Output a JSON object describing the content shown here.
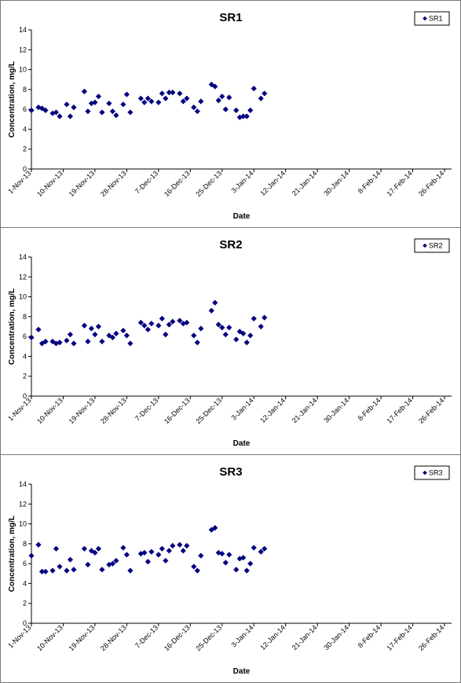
{
  "chart_data": [
    {
      "type": "scatter",
      "title": "SR1",
      "xlabel": "Date",
      "ylabel": "Concentration, mg/L",
      "ylim": [
        0,
        14
      ],
      "yticks": [
        0,
        2,
        4,
        6,
        8,
        10,
        12,
        14
      ],
      "xlim": [
        "2013-11-01",
        "2014-02-28"
      ],
      "xtick_labels": [
        "1-Nov-13",
        "10-Nov-13",
        "19-Nov-13",
        "28-Nov-13",
        "7-Dec-13",
        "16-Dec-13",
        "25-Dec-13",
        "3-Jan-14",
        "12-Jan-14",
        "21-Jan-14",
        "30-Jan-14",
        "8-Feb-14",
        "17-Feb-14",
        "26-Feb-14"
      ],
      "xtick_dates": [
        "2013-11-01",
        "2013-11-10",
        "2013-11-19",
        "2013-11-28",
        "2013-12-07",
        "2013-12-16",
        "2013-12-25",
        "2014-01-03",
        "2014-01-12",
        "2014-01-21",
        "2014-01-30",
        "2014-02-08",
        "2014-02-17",
        "2014-02-26"
      ],
      "grid": false,
      "legend_position": "top-right",
      "marker_color": "#000080",
      "series": [
        {
          "name": "SR1",
          "points": [
            {
              "x": "2013-11-01",
              "y": 5.9
            },
            {
              "x": "2013-11-03",
              "y": 6.2
            },
            {
              "x": "2013-11-04",
              "y": 6.1
            },
            {
              "x": "2013-11-05",
              "y": 5.9
            },
            {
              "x": "2013-11-07",
              "y": 5.6
            },
            {
              "x": "2013-11-08",
              "y": 5.7
            },
            {
              "x": "2013-11-09",
              "y": 5.3
            },
            {
              "x": "2013-11-11",
              "y": 6.5
            },
            {
              "x": "2013-11-12",
              "y": 5.3
            },
            {
              "x": "2013-11-13",
              "y": 6.2
            },
            {
              "x": "2013-11-16",
              "y": 7.8
            },
            {
              "x": "2013-11-17",
              "y": 5.8
            },
            {
              "x": "2013-11-18",
              "y": 6.6
            },
            {
              "x": "2013-11-19",
              "y": 6.7
            },
            {
              "x": "2013-11-20",
              "y": 7.3
            },
            {
              "x": "2013-11-21",
              "y": 5.7
            },
            {
              "x": "2013-11-23",
              "y": 6.6
            },
            {
              "x": "2013-11-24",
              "y": 5.8
            },
            {
              "x": "2013-11-25",
              "y": 5.4
            },
            {
              "x": "2013-11-27",
              "y": 6.5
            },
            {
              "x": "2013-11-28",
              "y": 7.5
            },
            {
              "x": "2013-11-29",
              "y": 5.7
            },
            {
              "x": "2013-12-02",
              "y": 7.1
            },
            {
              "x": "2013-12-03",
              "y": 6.7
            },
            {
              "x": "2013-12-04",
              "y": 7.1
            },
            {
              "x": "2013-12-05",
              "y": 6.8
            },
            {
              "x": "2013-12-07",
              "y": 6.7
            },
            {
              "x": "2013-12-08",
              "y": 7.6
            },
            {
              "x": "2013-12-09",
              "y": 7.1
            },
            {
              "x": "2013-12-10",
              "y": 7.7
            },
            {
              "x": "2013-12-11",
              "y": 7.7
            },
            {
              "x": "2013-12-13",
              "y": 7.6
            },
            {
              "x": "2013-12-14",
              "y": 6.8
            },
            {
              "x": "2013-12-15",
              "y": 7.1
            },
            {
              "x": "2013-12-17",
              "y": 6.2
            },
            {
              "x": "2013-12-18",
              "y": 5.8
            },
            {
              "x": "2013-12-19",
              "y": 6.8
            },
            {
              "x": "2013-12-22",
              "y": 8.5
            },
            {
              "x": "2013-12-23",
              "y": 8.3
            },
            {
              "x": "2013-12-24",
              "y": 6.9
            },
            {
              "x": "2013-12-25",
              "y": 7.3
            },
            {
              "x": "2013-12-26",
              "y": 6.0
            },
            {
              "x": "2013-12-27",
              "y": 7.2
            },
            {
              "x": "2013-12-29",
              "y": 5.9
            },
            {
              "x": "2013-12-30",
              "y": 5.2
            },
            {
              "x": "2013-12-31",
              "y": 5.3
            },
            {
              "x": "2014-01-01",
              "y": 5.3
            },
            {
              "x": "2014-01-02",
              "y": 5.9
            },
            {
              "x": "2014-01-03",
              "y": 8.1
            },
            {
              "x": "2014-01-05",
              "y": 7.1
            },
            {
              "x": "2014-01-06",
              "y": 7.6
            }
          ]
        }
      ]
    },
    {
      "type": "scatter",
      "title": "SR2",
      "xlabel": "Date",
      "ylabel": "Concentration, mg/L",
      "ylim": [
        0,
        14
      ],
      "yticks": [
        0,
        2,
        4,
        6,
        8,
        10,
        12,
        14
      ],
      "xlim": [
        "2013-11-01",
        "2014-02-28"
      ],
      "xtick_labels": [
        "1-Nov-13",
        "10-Nov-13",
        "19-Nov-13",
        "28-Nov-13",
        "7-Dec-13",
        "16-Dec-13",
        "25-Dec-13",
        "3-Jan-14",
        "12-Jan-14",
        "21-Jan-14",
        "30-Jan-14",
        "8-Feb-14",
        "17-Feb-14",
        "26-Feb-14"
      ],
      "xtick_dates": [
        "2013-11-01",
        "2013-11-10",
        "2013-11-19",
        "2013-11-28",
        "2013-12-07",
        "2013-12-16",
        "2013-12-25",
        "2014-01-03",
        "2014-01-12",
        "2014-01-21",
        "2014-01-30",
        "2014-02-08",
        "2014-02-17",
        "2014-02-26"
      ],
      "grid": false,
      "legend_position": "top-right",
      "marker_color": "#000080",
      "series": [
        {
          "name": "SR2",
          "points": [
            {
              "x": "2013-11-01",
              "y": 5.9
            },
            {
              "x": "2013-11-03",
              "y": 6.7
            },
            {
              "x": "2013-11-04",
              "y": 5.3
            },
            {
              "x": "2013-11-05",
              "y": 5.5
            },
            {
              "x": "2013-11-07",
              "y": 5.5
            },
            {
              "x": "2013-11-08",
              "y": 5.3
            },
            {
              "x": "2013-11-09",
              "y": 5.4
            },
            {
              "x": "2013-11-11",
              "y": 5.6
            },
            {
              "x": "2013-11-12",
              "y": 6.2
            },
            {
              "x": "2013-11-13",
              "y": 5.3
            },
            {
              "x": "2013-11-16",
              "y": 7.1
            },
            {
              "x": "2013-11-17",
              "y": 5.5
            },
            {
              "x": "2013-11-18",
              "y": 6.8
            },
            {
              "x": "2013-11-19",
              "y": 6.2
            },
            {
              "x": "2013-11-20",
              "y": 7.0
            },
            {
              "x": "2013-11-21",
              "y": 5.5
            },
            {
              "x": "2013-11-23",
              "y": 6.1
            },
            {
              "x": "2013-11-24",
              "y": 5.9
            },
            {
              "x": "2013-11-25",
              "y": 6.3
            },
            {
              "x": "2013-11-27",
              "y": 6.6
            },
            {
              "x": "2013-11-28",
              "y": 6.1
            },
            {
              "x": "2013-11-29",
              "y": 5.3
            },
            {
              "x": "2013-12-02",
              "y": 7.4
            },
            {
              "x": "2013-12-03",
              "y": 7.1
            },
            {
              "x": "2013-12-04",
              "y": 6.7
            },
            {
              "x": "2013-12-05",
              "y": 7.3
            },
            {
              "x": "2013-12-07",
              "y": 7.1
            },
            {
              "x": "2013-12-08",
              "y": 7.8
            },
            {
              "x": "2013-12-09",
              "y": 6.2
            },
            {
              "x": "2013-12-10",
              "y": 7.2
            },
            {
              "x": "2013-12-11",
              "y": 7.5
            },
            {
              "x": "2013-12-13",
              "y": 7.6
            },
            {
              "x": "2013-12-14",
              "y": 7.3
            },
            {
              "x": "2013-12-15",
              "y": 7.4
            },
            {
              "x": "2013-12-17",
              "y": 6.1
            },
            {
              "x": "2013-12-18",
              "y": 5.4
            },
            {
              "x": "2013-12-19",
              "y": 6.8
            },
            {
              "x": "2013-12-22",
              "y": 8.6
            },
            {
              "x": "2013-12-23",
              "y": 9.4
            },
            {
              "x": "2013-12-24",
              "y": 7.2
            },
            {
              "x": "2013-12-25",
              "y": 6.9
            },
            {
              "x": "2013-12-26",
              "y": 6.2
            },
            {
              "x": "2013-12-27",
              "y": 6.9
            },
            {
              "x": "2013-12-29",
              "y": 5.7
            },
            {
              "x": "2013-12-30",
              "y": 6.5
            },
            {
              "x": "2013-12-31",
              "y": 6.3
            },
            {
              "x": "2014-01-01",
              "y": 5.4
            },
            {
              "x": "2014-01-02",
              "y": 6.1
            },
            {
              "x": "2014-01-03",
              "y": 7.8
            },
            {
              "x": "2014-01-05",
              "y": 7.0
            },
            {
              "x": "2014-01-06",
              "y": 7.9
            }
          ]
        }
      ]
    },
    {
      "type": "scatter",
      "title": "SR3",
      "xlabel": "Date",
      "ylabel": "Concentration, mg/L",
      "ylim": [
        0,
        14
      ],
      "yticks": [
        0,
        2,
        4,
        6,
        8,
        10,
        12,
        14
      ],
      "xlim": [
        "2013-11-01",
        "2014-02-28"
      ],
      "xtick_labels": [
        "1-Nov-13",
        "10-Nov-13",
        "19-Nov-13",
        "28-Nov-13",
        "7-Dec-13",
        "16-Dec-13",
        "25-Dec-13",
        "3-Jan-14",
        "12-Jan-14",
        "21-Jan-14",
        "30-Jan-14",
        "8-Feb-14",
        "17-Feb-14",
        "26-Feb-14"
      ],
      "xtick_dates": [
        "2013-11-01",
        "2013-11-10",
        "2013-11-19",
        "2013-11-28",
        "2013-12-07",
        "2013-12-16",
        "2013-12-25",
        "2014-01-03",
        "2014-01-12",
        "2014-01-21",
        "2014-01-30",
        "2014-02-08",
        "2014-02-17",
        "2014-02-26"
      ],
      "grid": false,
      "legend_position": "top-right",
      "marker_color": "#000080",
      "series": [
        {
          "name": "SR3",
          "points": [
            {
              "x": "2013-11-01",
              "y": 6.8
            },
            {
              "x": "2013-11-03",
              "y": 7.9
            },
            {
              "x": "2013-11-04",
              "y": 5.2
            },
            {
              "x": "2013-11-05",
              "y": 5.2
            },
            {
              "x": "2013-11-07",
              "y": 5.3
            },
            {
              "x": "2013-11-08",
              "y": 7.5
            },
            {
              "x": "2013-11-09",
              "y": 5.7
            },
            {
              "x": "2013-11-11",
              "y": 5.3
            },
            {
              "x": "2013-11-12",
              "y": 6.4
            },
            {
              "x": "2013-11-13",
              "y": 5.4
            },
            {
              "x": "2013-11-16",
              "y": 7.5
            },
            {
              "x": "2013-11-17",
              "y": 5.9
            },
            {
              "x": "2013-11-18",
              "y": 7.3
            },
            {
              "x": "2013-11-19",
              "y": 7.1
            },
            {
              "x": "2013-11-20",
              "y": 7.5
            },
            {
              "x": "2013-11-21",
              "y": 5.4
            },
            {
              "x": "2013-11-23",
              "y": 5.9
            },
            {
              "x": "2013-11-24",
              "y": 6.0
            },
            {
              "x": "2013-11-25",
              "y": 6.3
            },
            {
              "x": "2013-11-27",
              "y": 7.6
            },
            {
              "x": "2013-11-28",
              "y": 6.9
            },
            {
              "x": "2013-11-29",
              "y": 5.3
            },
            {
              "x": "2013-12-02",
              "y": 7.0
            },
            {
              "x": "2013-12-03",
              "y": 7.1
            },
            {
              "x": "2013-12-04",
              "y": 6.2
            },
            {
              "x": "2013-12-05",
              "y": 7.2
            },
            {
              "x": "2013-12-07",
              "y": 6.9
            },
            {
              "x": "2013-12-08",
              "y": 7.5
            },
            {
              "x": "2013-12-09",
              "y": 6.3
            },
            {
              "x": "2013-12-10",
              "y": 7.3
            },
            {
              "x": "2013-12-11",
              "y": 7.8
            },
            {
              "x": "2013-12-13",
              "y": 7.9
            },
            {
              "x": "2013-12-14",
              "y": 7.3
            },
            {
              "x": "2013-12-15",
              "y": 7.8
            },
            {
              "x": "2013-12-17",
              "y": 5.7
            },
            {
              "x": "2013-12-18",
              "y": 5.3
            },
            {
              "x": "2013-12-19",
              "y": 6.8
            },
            {
              "x": "2013-12-22",
              "y": 9.4
            },
            {
              "x": "2013-12-23",
              "y": 9.6
            },
            {
              "x": "2013-12-24",
              "y": 7.1
            },
            {
              "x": "2013-12-25",
              "y": 7.0
            },
            {
              "x": "2013-12-26",
              "y": 6.1
            },
            {
              "x": "2013-12-27",
              "y": 6.9
            },
            {
              "x": "2013-12-29",
              "y": 5.4
            },
            {
              "x": "2013-12-30",
              "y": 6.5
            },
            {
              "x": "2013-12-31",
              "y": 6.6
            },
            {
              "x": "2014-01-01",
              "y": 5.3
            },
            {
              "x": "2014-01-02",
              "y": 6.0
            },
            {
              "x": "2014-01-03",
              "y": 7.6
            },
            {
              "x": "2014-01-05",
              "y": 7.2
            },
            {
              "x": "2014-01-06",
              "y": 7.5
            }
          ]
        }
      ]
    }
  ]
}
